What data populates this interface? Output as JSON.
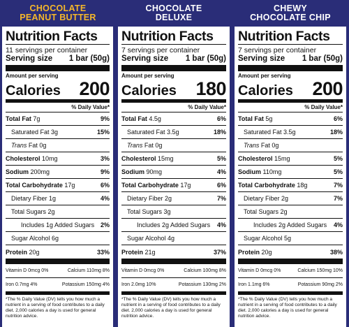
{
  "header_color": "#ffc233",
  "header_colors": [
    "#f5b72a",
    "#ffffff",
    "#ffffff"
  ],
  "panels": [
    {
      "flavor_line1": "CHOCOLATE",
      "flavor_line2": "PEANUT BUTTER",
      "title": "Nutrition Facts",
      "servings": "11 servings per container",
      "serving_label": "Serving size",
      "serving_value": "1 bar (50g)",
      "amount_per_serving": "Amount per serving",
      "calories_label": "Calories",
      "calories_value": "200",
      "dv_header": "% Daily Value*",
      "total_fat": {
        "label": "Total Fat",
        "amount": "7g",
        "dv": "9%"
      },
      "sat_fat": {
        "label": "Saturated Fat 3g",
        "dv": "15%"
      },
      "trans_fat": {
        "label": "Trans",
        "amount": "Fat 0g"
      },
      "cholesterol": {
        "label": "Cholesterol",
        "amount": "10mg",
        "dv": "3%"
      },
      "sodium": {
        "label": "Sodium",
        "amount": "200mg",
        "dv": "9%"
      },
      "carb": {
        "label": "Total Carbohydrate",
        "amount": "17g",
        "dv": "6%"
      },
      "fiber": {
        "label": "Dietary Fiber 1g",
        "dv": "4%"
      },
      "sugars": {
        "label": "Total Sugars 2g"
      },
      "added_sugars": {
        "label": "Includes 1g Added Sugars",
        "dv": "2%"
      },
      "sugar_alcohol": {
        "label": "Sugar Alcohol 6g"
      },
      "protein": {
        "label": "Protein",
        "amount": "20g",
        "dv": "33%"
      },
      "vit_d": "Vitamin D 0mcg 0%",
      "calcium": "Calcium 110mg 8%",
      "iron": "Iron 0.7mg 4%",
      "potassium": "Potassium 150mg 4%",
      "footnote": "*The % Daily Value (DV) tells you how much a nutrient in a serving of food contributes to a daily diet. 2,000 calories a day is used for general nutrition advice."
    },
    {
      "flavor_line1": "CHOCOLATE",
      "flavor_line2": "DELUXE",
      "title": "Nutrition Facts",
      "servings": "7 servings per container",
      "serving_label": "Serving size",
      "serving_value": "1 bar (50g)",
      "amount_per_serving": "Amount per serving",
      "calories_label": "Calories",
      "calories_value": "180",
      "dv_header": "% Daily Value*",
      "total_fat": {
        "label": "Total Fat",
        "amount": "4.5g",
        "dv": "6%"
      },
      "sat_fat": {
        "label": "Saturated Fat 3.5g",
        "dv": "18%"
      },
      "trans_fat": {
        "label": "Trans",
        "amount": "Fat 0g"
      },
      "cholesterol": {
        "label": "Cholesterol",
        "amount": "15mg",
        "dv": "5%"
      },
      "sodium": {
        "label": "Sodium",
        "amount": "90mg",
        "dv": "4%"
      },
      "carb": {
        "label": "Total Carbohydrate",
        "amount": "17g",
        "dv": "6%"
      },
      "fiber": {
        "label": "Dietary Fiber 2g",
        "dv": "7%"
      },
      "sugars": {
        "label": "Total Sugars 3g"
      },
      "added_sugars": {
        "label": "Includes 2g Added Sugars",
        "dv": "4%"
      },
      "sugar_alcohol": {
        "label": "Sugar Alcohol 4g"
      },
      "protein": {
        "label": "Protein",
        "amount": "21g",
        "dv": "37%"
      },
      "vit_d": "Vitamin D 0mcg 0%",
      "calcium": "Calcium 100mg 8%",
      "iron": "Iron 2.0mg 10%",
      "potassium": "Potassium 130mg 2%",
      "footnote": "*The % Daily Value (DV) tells you how much a nutrient in a serving of food contributes to a daily diet. 2,000 calories a day is used for general nutrition advice."
    },
    {
      "flavor_line1": "CHEWY",
      "flavor_line2": "CHOCOLATE CHIP",
      "title": "Nutrition Facts",
      "servings": "7 servings per container",
      "serving_label": "Serving size",
      "serving_value": "1 bar (50g)",
      "amount_per_serving": "Amount per serving",
      "calories_label": "Calories",
      "calories_value": "200",
      "dv_header": "% Daily Value*",
      "total_fat": {
        "label": "Total Fat",
        "amount": "5g",
        "dv": "6%"
      },
      "sat_fat": {
        "label": "Saturated Fat 3.5g",
        "dv": "18%"
      },
      "trans_fat": {
        "label": "Trans",
        "amount": "Fat 0g"
      },
      "cholesterol": {
        "label": "Cholesterol",
        "amount": "15mg",
        "dv": "5%"
      },
      "sodium": {
        "label": "Sodium",
        "amount": "110mg",
        "dv": "5%"
      },
      "carb": {
        "label": "Total Carbohydrate",
        "amount": "18g",
        "dv": "7%"
      },
      "fiber": {
        "label": "Dietary Fiber 2g",
        "dv": "7%"
      },
      "sugars": {
        "label": "Total Sugars 2g"
      },
      "added_sugars": {
        "label": "Includes 2g Added Sugars",
        "dv": "4%"
      },
      "sugar_alcohol": {
        "label": "Sugar Alcohol 5g"
      },
      "protein": {
        "label": "Protein",
        "amount": "20g",
        "dv": "38%"
      },
      "vit_d": "Vitamin D 0mcg 0%",
      "calcium": "Calcium 150mg 10%",
      "iron": "Iron 1.1mg 6%",
      "potassium": "Potassium 90mg 2%",
      "footnote": "*The % Daily Value (DV) tells you how much a nutrient in a serving of food contributes to a daily diet. 2,000 calories a day is used for general nutrition advice."
    }
  ]
}
